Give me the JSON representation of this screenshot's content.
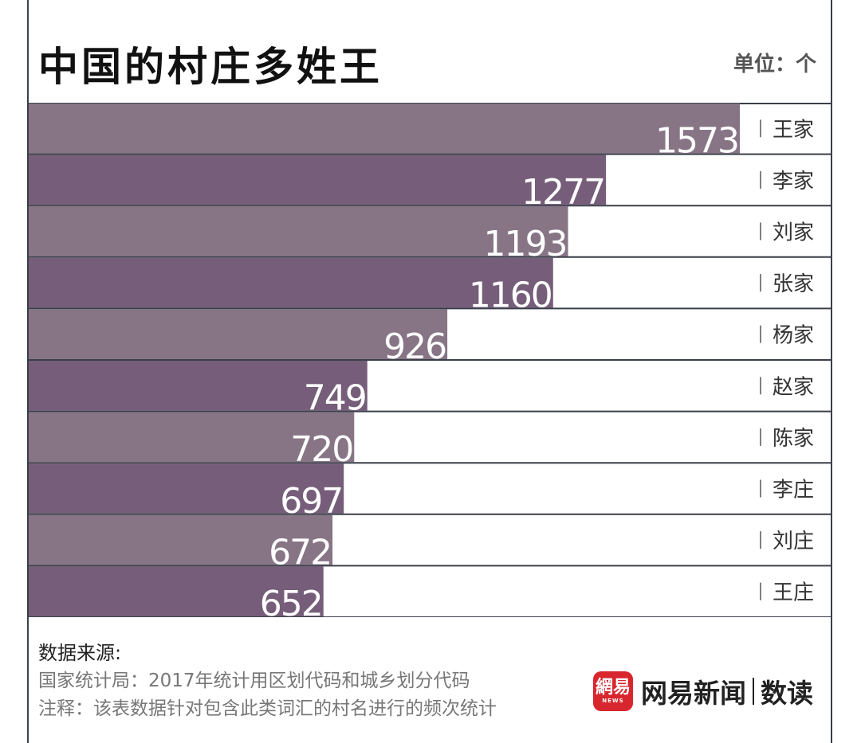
{
  "header": {
    "title": "中国的村庄多姓王",
    "unit": "单位：个"
  },
  "colors": {
    "bar_light": "#877586",
    "bar_dark": "#765e7a",
    "divider": "#3b3f4a",
    "value_text": "#ffffff",
    "label_text": "#333333",
    "logo_red": "#d8262e"
  },
  "chart_data": {
    "type": "bar",
    "orientation": "horizontal",
    "title": "中国的村庄多姓王",
    "unit": "单位：个",
    "categories": [
      "王家",
      "李家",
      "刘家",
      "张家",
      "杨家",
      "赵家",
      "陈家",
      "李庄",
      "刘庄",
      "王庄"
    ],
    "values": [
      1573,
      1277,
      1193,
      1160,
      926,
      749,
      720,
      697,
      672,
      652
    ],
    "xlim": [
      0,
      1573
    ],
    "xlabel": "",
    "ylabel": "",
    "grid": false,
    "legend": "none"
  },
  "footer": {
    "source_heading": "数据来源:",
    "source_line1": "国家统计局：2017年统计用区划代码和城乡划分代码",
    "source_line2": "注释：该表数据针对包含此类词汇的村名进行的频次统计",
    "logo_badge_text": "網易",
    "logo_badge_sub": "NEWS",
    "logo_brand": "网易新闻",
    "logo_column": "数读"
  }
}
